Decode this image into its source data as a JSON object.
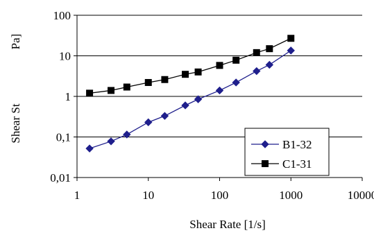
{
  "chart_data": {
    "type": "line",
    "xscale": "log",
    "yscale": "log",
    "xlim": [
      1,
      10000
    ],
    "ylim": [
      0.01,
      100
    ],
    "grid": {
      "horizontal": true,
      "vertical": false
    },
    "xlabel": "Shear Rate [1/s]",
    "ylabel_parts": [
      "Shear St",
      "Pa]"
    ],
    "x_tick_labels": [
      "1",
      "10",
      "100",
      "1000",
      "10000"
    ],
    "y_tick_labels": [
      "0,01",
      "0,1",
      "1",
      "10",
      "100"
    ],
    "legend_position": "right",
    "series": [
      {
        "name": "B1-32",
        "marker": "diamond",
        "color": "#1F1F8C",
        "x": [
          1.5,
          3,
          5,
          10,
          17,
          33,
          50,
          100,
          170,
          330,
          500,
          1000
        ],
        "y": [
          0.052,
          0.078,
          0.115,
          0.23,
          0.33,
          0.6,
          0.85,
          1.4,
          2.2,
          4.2,
          6.0,
          13.5
        ]
      },
      {
        "name": "C1-31",
        "marker": "square",
        "color": "#000000",
        "x": [
          1.5,
          3,
          5,
          10,
          17,
          33,
          50,
          100,
          170,
          330,
          500,
          1000
        ],
        "y": [
          1.2,
          1.4,
          1.7,
          2.2,
          2.6,
          3.5,
          4.0,
          5.8,
          7.8,
          12.0,
          15.0,
          27.0
        ]
      }
    ]
  }
}
